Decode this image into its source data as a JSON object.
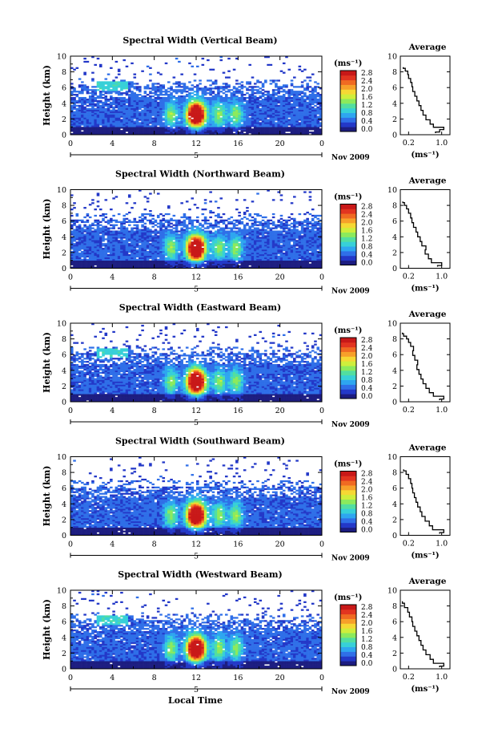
{
  "xlabel": "Local Time",
  "date_label": "Nov 2009",
  "colorbar": {
    "unit": "(ms⁻¹)",
    "ticks": [
      "0.0",
      "0.4",
      "0.8",
      "1.2",
      "1.6",
      "2.0",
      "2.4",
      "2.8"
    ],
    "colors": [
      "#1c1c80",
      "#2338c8",
      "#2f6fe8",
      "#2ea6f0",
      "#37d0d8",
      "#52dea0",
      "#8cea5c",
      "#cfee3c",
      "#f6d834",
      "#f7a02a",
      "#f06a22",
      "#e23420",
      "#c81818"
    ]
  },
  "chart_data": [
    {
      "type": "heatmap",
      "title": "Spectral Width (Vertical Beam)",
      "ylabel": "Height (km)",
      "x_ticks": [
        "0",
        "4",
        "8",
        "12",
        "16",
        "20",
        "0"
      ],
      "y_ticks": [
        "0",
        "2",
        "4",
        "6",
        "8",
        "10"
      ],
      "xlim": [
        0,
        24
      ],
      "ylim": [
        0,
        10
      ],
      "day_marker": "5",
      "clim": [
        0,
        2.8
      ],
      "profile": {
        "title": "Average",
        "xlabel": "(ms⁻¹)",
        "x_ticks": [
          "0.2",
          "1.0"
        ],
        "y_ticks": [
          "0",
          "2",
          "4",
          "6",
          "8",
          "10"
        ],
        "xlim": [
          0,
          1.2
        ],
        "ylim": [
          0,
          10
        ],
        "x": [
          0.85,
          0.95,
          1.05,
          0.8,
          0.72,
          0.62,
          0.55,
          0.5,
          0.45,
          0.4,
          0.35,
          0.3,
          0.28,
          0.25,
          0.2,
          0.18,
          0.12,
          0.07
        ],
        "y": [
          0.2,
          0.5,
          0.8,
          1.1,
          1.6,
          2.2,
          2.8,
          3.4,
          4.0,
          4.6,
          5.2,
          5.8,
          6.4,
          6.9,
          7.4,
          7.9,
          8.3,
          8.6
        ]
      }
    },
    {
      "type": "heatmap",
      "title": "Spectral Width (Northward Beam)",
      "ylabel": "Height (km)",
      "x_ticks": [
        "0",
        "4",
        "8",
        "12",
        "16",
        "20",
        "0"
      ],
      "y_ticks": [
        "0",
        "2",
        "4",
        "6",
        "8",
        "10"
      ],
      "xlim": [
        0,
        24
      ],
      "ylim": [
        0,
        10
      ],
      "day_marker": "5",
      "clim": [
        0,
        2.8
      ],
      "profile": {
        "title": "Average",
        "xlabel": "(ms⁻¹)",
        "x_ticks": [
          "0.2",
          "1.0"
        ],
        "y_ticks": [
          "0",
          "2",
          "4",
          "6",
          "8",
          "10"
        ],
        "xlim": [
          0,
          1.2
        ],
        "ylim": [
          0,
          10
        ],
        "x": [
          0.9,
          1.0,
          0.75,
          0.68,
          0.6,
          0.62,
          0.52,
          0.48,
          0.42,
          0.38,
          0.32,
          0.28,
          0.25,
          0.2,
          0.15,
          0.1,
          0.06
        ],
        "y": [
          0.2,
          0.5,
          0.9,
          1.5,
          2.1,
          2.6,
          3.1,
          3.7,
          4.3,
          4.9,
          5.5,
          6.1,
          6.7,
          7.3,
          7.8,
          8.2,
          8.5
        ]
      }
    },
    {
      "type": "heatmap",
      "title": "Spectral Width (Eastward Beam)",
      "ylabel": "Height (km)",
      "x_ticks": [
        "0",
        "4",
        "8",
        "12",
        "16",
        "20",
        "0"
      ],
      "y_ticks": [
        "0",
        "2",
        "4",
        "6",
        "8",
        "10"
      ],
      "xlim": [
        0,
        24
      ],
      "ylim": [
        0,
        10
      ],
      "day_marker": "5",
      "clim": [
        0,
        2.8
      ],
      "profile": {
        "title": "Average",
        "xlabel": "",
        "x_ticks": [
          "0.2",
          "1.0"
        ],
        "y_ticks": [
          "0",
          "2",
          "4",
          "6",
          "8",
          "10"
        ],
        "xlim": [
          0,
          1.2
        ],
        "ylim": [
          0,
          10
        ],
        "x": [
          0.95,
          1.05,
          0.8,
          0.7,
          0.62,
          0.55,
          0.5,
          0.45,
          0.4,
          0.42,
          0.35,
          0.3,
          0.32,
          0.25,
          0.2,
          0.15,
          0.08,
          0.05
        ],
        "y": [
          0.2,
          0.5,
          0.9,
          1.4,
          2.0,
          2.6,
          3.2,
          3.8,
          4.4,
          5.0,
          5.6,
          6.2,
          6.8,
          7.3,
          7.8,
          8.2,
          8.5,
          8.8
        ]
      }
    },
    {
      "type": "heatmap",
      "title": "Spectral Width (Southward Beam)",
      "ylabel": "Height (km)",
      "x_ticks": [
        "0",
        "4",
        "8",
        "12",
        "16",
        "20",
        "0"
      ],
      "y_ticks": [
        "0",
        "2",
        "4",
        "6",
        "8",
        "10"
      ],
      "xlim": [
        0,
        24
      ],
      "ylim": [
        0,
        10
      ],
      "day_marker": "5",
      "clim": [
        0,
        2.8
      ],
      "profile": {
        "title": "Average",
        "xlabel": "(ms⁻¹)",
        "x_ticks": [
          "0.2",
          "1.0"
        ],
        "y_ticks": [
          "0",
          "2",
          "4",
          "6",
          "8",
          "10"
        ],
        "xlim": [
          0,
          1.2
        ],
        "ylim": [
          0,
          10
        ],
        "x": [
          0.95,
          1.05,
          0.78,
          0.7,
          0.6,
          0.52,
          0.48,
          0.42,
          0.38,
          0.34,
          0.3,
          0.28,
          0.25,
          0.2,
          0.14,
          0.08
        ],
        "y": [
          0.2,
          0.5,
          0.9,
          1.5,
          2.1,
          2.7,
          3.3,
          3.9,
          4.5,
          5.1,
          5.7,
          6.3,
          6.9,
          7.5,
          8.0,
          8.4
        ]
      }
    },
    {
      "type": "heatmap",
      "title": "Spectral Width (Westward Beam)",
      "ylabel": "Height (km)",
      "x_ticks": [
        "0",
        "4",
        "8",
        "12",
        "16",
        "20",
        "0"
      ],
      "y_ticks": [
        "0",
        "2",
        "4",
        "6",
        "8",
        "10"
      ],
      "xlim": [
        0,
        24
      ],
      "ylim": [
        0,
        10
      ],
      "day_marker": "5",
      "clim": [
        0,
        2.8
      ],
      "profile": {
        "title": "Average",
        "xlabel": "(ms⁻¹)",
        "x_ticks": [
          "0.2",
          "1.0"
        ],
        "y_ticks": [
          "0",
          "2",
          "4",
          "6",
          "8",
          "10"
        ],
        "xlim": [
          0,
          1.2
        ],
        "ylim": [
          0,
          10
        ],
        "x": [
          0.95,
          1.05,
          0.8,
          0.72,
          0.62,
          0.55,
          0.5,
          0.45,
          0.4,
          0.35,
          0.3,
          0.28,
          0.22,
          0.18,
          0.1,
          0.05
        ],
        "y": [
          0.2,
          0.5,
          0.9,
          1.5,
          2.1,
          2.7,
          3.3,
          3.9,
          4.5,
          5.1,
          5.7,
          6.3,
          6.9,
          7.5,
          8.1,
          8.6
        ]
      }
    }
  ]
}
